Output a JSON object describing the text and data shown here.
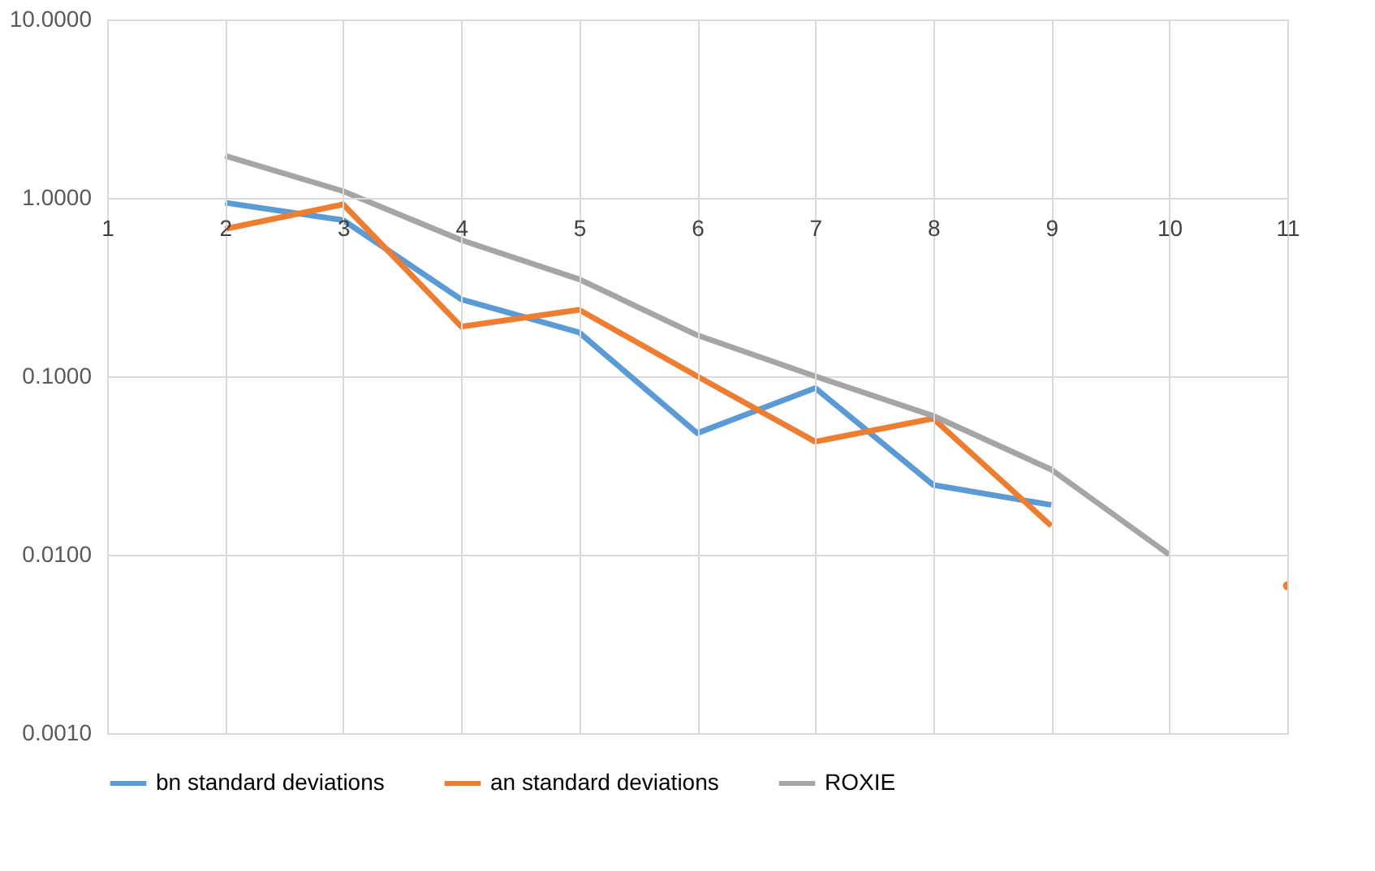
{
  "chart_data": {
    "type": "line",
    "categories": [
      "1",
      "2",
      "3",
      "4",
      "5",
      "6",
      "7",
      "8",
      "9",
      "10",
      "11"
    ],
    "series": [
      {
        "name": "bn standard deviations",
        "color": "#5b9bd5",
        "values": [
          null,
          0.94,
          0.75,
          0.27,
          0.176,
          0.048,
          0.086,
          0.0246,
          0.019,
          null,
          null
        ]
      },
      {
        "name": "an standard deviations",
        "color": "#ed7d31",
        "values": [
          null,
          0.67,
          0.92,
          0.19,
          0.236,
          0.1,
          0.043,
          0.058,
          0.0145,
          null,
          0.0067
        ]
      },
      {
        "name": "ROXIE",
        "color": "#a5a5a5",
        "values": [
          null,
          1.72,
          1.09,
          0.58,
          0.35,
          0.17,
          0.1,
          0.06,
          0.03,
          0.01,
          null
        ]
      }
    ],
    "log": true,
    "ylim": [
      0.001,
      10
    ],
    "yticks": [
      {
        "value": 0.001,
        "label": "0.0010"
      },
      {
        "value": 0.01,
        "label": "0.0100"
      },
      {
        "value": 0.1,
        "label": "0.1000"
      },
      {
        "value": 1,
        "label": "1.0000"
      },
      {
        "value": 10,
        "label": "10.0000"
      }
    ],
    "grid": true,
    "legend": "bottom",
    "marker": "none",
    "line_style": "solid"
  }
}
